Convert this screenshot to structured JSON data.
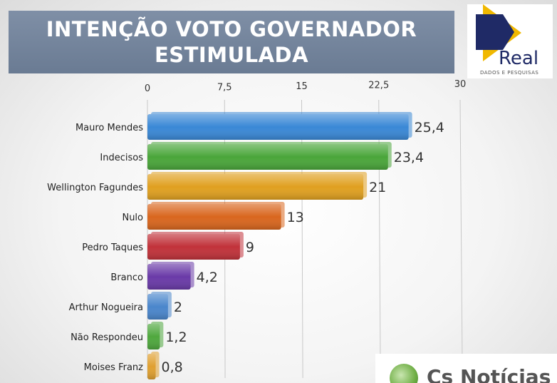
{
  "header": {
    "title_line1": "INTENÇÃO VOTO GOVERNADOR",
    "title_line2": "ESTIMULADA"
  },
  "logo": {
    "name": "Real",
    "subtitle": "DADOS E PESQUISAS",
    "icon": "play-arrow-logo-icon"
  },
  "source": {
    "text": "Cs Notícias",
    "icon": "globe-leaf-icon"
  },
  "colors": {
    "banner": "#7384a0",
    "logo_dark": "#1f2a66",
    "logo_accent": "#f0b800"
  },
  "chart_data": {
    "type": "bar",
    "orientation": "horizontal",
    "title": "INTENÇÃO VOTO GOVERNADOR ESTIMULADA",
    "categories": [
      "Mauro Mendes",
      "Indecisos",
      "Wellington Fagundes",
      "Nulo",
      "Pedro Taques",
      "Branco",
      "Arthur Nogueira",
      "Não Respondeu",
      "Moises Franz"
    ],
    "values": [
      25.4,
      23.4,
      21,
      13,
      9,
      4.2,
      2,
      1.2,
      0.8
    ],
    "value_labels": [
      "25,4",
      "23,4",
      "21",
      "13",
      "9",
      "4,2",
      "2",
      "1,2",
      "0,8"
    ],
    "bar_colors": [
      "#3a88d6",
      "#4aa63a",
      "#e0a020",
      "#d9661e",
      "#c1323a",
      "#6a3aa8",
      "#4a86cc",
      "#4fa83e",
      "#e0a030"
    ],
    "x_ticks": [
      "0",
      "7,5",
      "15",
      "22,5",
      "30"
    ],
    "xlim": [
      0,
      30
    ],
    "grid": true,
    "xlabel": "",
    "ylabel": ""
  }
}
